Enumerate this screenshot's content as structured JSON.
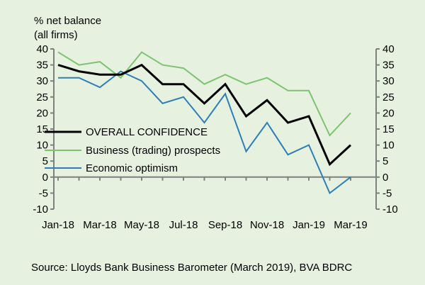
{
  "chart_data": {
    "type": "line",
    "ylabel_lines": [
      "% net balance",
      "(all firms)"
    ],
    "ylim": [
      -10,
      40
    ],
    "yticks": [
      40,
      35,
      30,
      25,
      20,
      15,
      10,
      5,
      0,
      -5,
      -10
    ],
    "x": [
      "Jan-18",
      "Feb-18",
      "Mar-18",
      "Apr-18",
      "May-18",
      "Jun-18",
      "Jul-18",
      "Aug-18",
      "Sep-18",
      "Oct-18",
      "Nov-18",
      "Dec-18",
      "Jan-19",
      "Feb-19",
      "Mar-19"
    ],
    "xtick_labels": [
      "Jan-18",
      "Mar-18",
      "May-18",
      "Jul-18",
      "Sep-18",
      "Nov-18",
      "Jan-19",
      "Mar-19"
    ],
    "grid": false,
    "legend_position": "center-left",
    "series": [
      {
        "name": "OVERALL CONFIDENCE",
        "color": "#000000",
        "values": [
          35,
          33,
          32,
          32,
          35,
          29,
          29,
          23,
          29,
          19,
          24,
          17,
          19,
          4,
          10
        ]
      },
      {
        "name": "Business (trading) prospects",
        "color": "#7cc46f",
        "values": [
          39,
          35,
          36,
          31,
          39,
          35,
          34,
          29,
          32,
          29,
          31,
          27,
          27,
          13,
          20
        ]
      },
      {
        "name": "Economic optimism",
        "color": "#2e7fb8",
        "values": [
          31,
          31,
          28,
          33,
          30,
          23,
          25,
          17,
          26,
          8,
          17,
          7,
          10,
          -5,
          0
        ]
      }
    ]
  },
  "source": "Source: Lloyds Bank Business Barometer (March 2019), BVA BDRC"
}
